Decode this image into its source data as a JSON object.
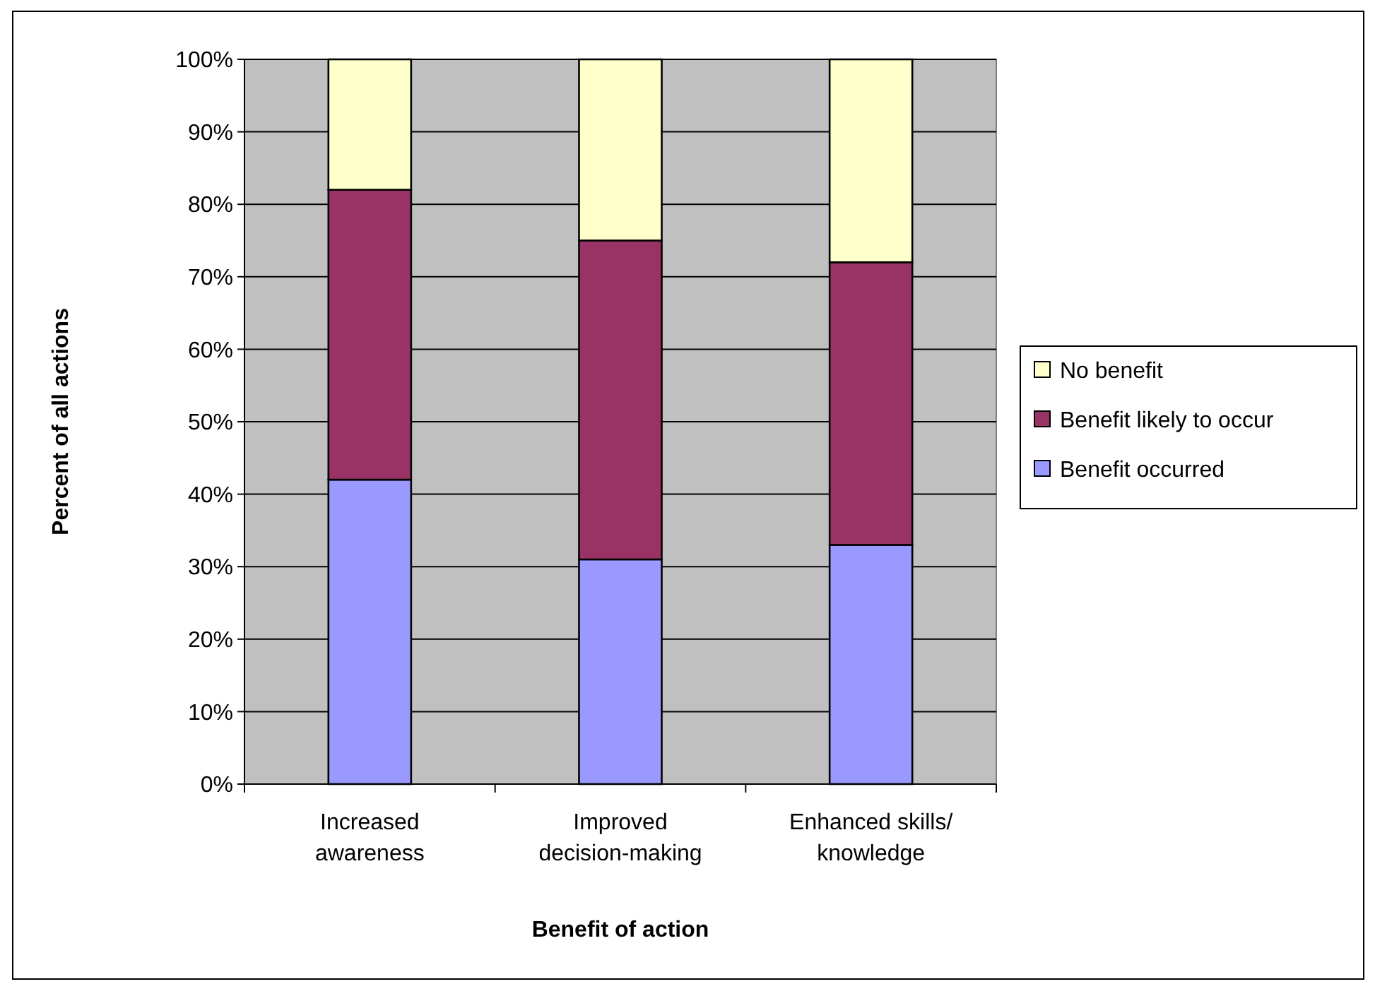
{
  "chart_data": {
    "type": "bar",
    "stacked": true,
    "xlabel": "Benefit of action",
    "ylabel": "Percent of all actions",
    "categories": [
      "Increased awareness",
      "Improved decision-making",
      "Enhanced skills/ knowledge"
    ],
    "series": [
      {
        "name": "Benefit occurred",
        "color": "#9999ff",
        "values": [
          42,
          31,
          33
        ]
      },
      {
        "name": "Benefit likely to occur",
        "color": "#993366",
        "values": [
          40,
          44,
          39
        ]
      },
      {
        "name": "No benefit",
        "color": "#ffffcc",
        "values": [
          18,
          25,
          28
        ]
      }
    ],
    "ylim": [
      0,
      100
    ],
    "yticks": [
      {
        "value": 0,
        "label": "0%"
      },
      {
        "value": 10,
        "label": "10%"
      },
      {
        "value": 20,
        "label": "20%"
      },
      {
        "value": 30,
        "label": "30%"
      },
      {
        "value": 40,
        "label": "40%"
      },
      {
        "value": 50,
        "label": "50%"
      },
      {
        "value": 60,
        "label": "60%"
      },
      {
        "value": 70,
        "label": "70%"
      },
      {
        "value": 80,
        "label": "80%"
      },
      {
        "value": 90,
        "label": "90%"
      },
      {
        "value": 100,
        "label": "100%"
      }
    ],
    "grid": "y",
    "legend": "right"
  }
}
